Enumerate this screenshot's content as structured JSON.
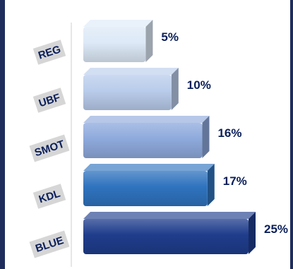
{
  "chart_data": {
    "type": "bar",
    "orientation": "horizontal",
    "style": "3d",
    "categories": [
      "REG",
      "UBF",
      "SMOT",
      "KDL",
      "BLUE"
    ],
    "values": [
      5,
      10,
      16,
      17,
      25
    ],
    "value_labels": [
      "5%",
      "10%",
      "16%",
      "17%",
      "25%"
    ],
    "colors": [
      "#dde9f7",
      "#b9cceb",
      "#8ea9dc",
      "#2f73be",
      "#1f3d8c"
    ],
    "xlim": [
      0,
      25
    ],
    "grid": false,
    "legend": "none",
    "title": "",
    "xlabel": "",
    "ylabel": ""
  }
}
